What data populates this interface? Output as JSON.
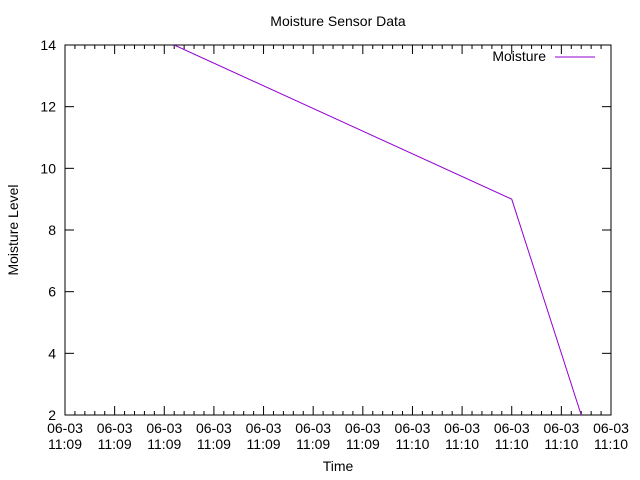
{
  "chart_data": {
    "type": "line",
    "title": "Moisture Sensor Data",
    "xlabel": "Time",
    "ylabel": "Moisture Level",
    "x_ticks": [
      {
        "date": "06-03",
        "time": "11:09"
      },
      {
        "date": "06-03",
        "time": "11:09"
      },
      {
        "date": "06-03",
        "time": "11:09"
      },
      {
        "date": "06-03",
        "time": "11:09"
      },
      {
        "date": "06-03",
        "time": "11:09"
      },
      {
        "date": "06-03",
        "time": "11:09"
      },
      {
        "date": "06-03",
        "time": "11:09"
      },
      {
        "date": "06-03",
        "time": "11:10"
      },
      {
        "date": "06-03",
        "time": "11:10"
      },
      {
        "date": "06-03",
        "time": "11:10"
      },
      {
        "date": "06-03",
        "time": "11:10"
      },
      {
        "date": "06-03",
        "time": "11:10"
      }
    ],
    "y_ticks": [
      "2",
      "4",
      "6",
      "8",
      "10",
      "12",
      "14"
    ],
    "ylim": [
      2,
      14
    ],
    "legend_position": "top-right",
    "series": [
      {
        "name": "Moisture",
        "color": "#9400d3",
        "x_tick_index": [
          2.2,
          9.0,
          10.4
        ],
        "values": [
          14,
          9,
          2
        ]
      }
    ]
  }
}
